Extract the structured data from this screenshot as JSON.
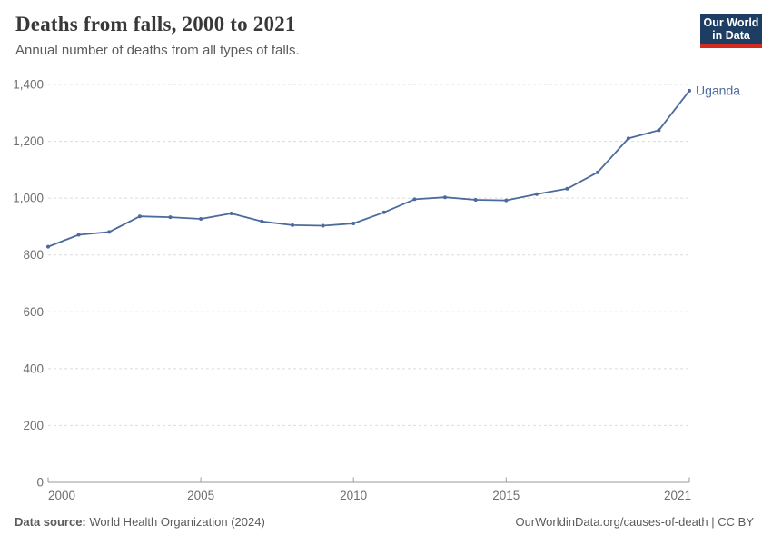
{
  "header": {
    "title": "Deaths from falls, 2000 to 2021",
    "subtitle": "Annual number of deaths from all types of falls.",
    "logo": {
      "line1": "Our World",
      "line2": "in Data",
      "bg_color": "#1d3d63",
      "accent_color": "#d42b21"
    }
  },
  "chart_data": {
    "type": "line",
    "title": "Deaths from falls, 2000 to 2021",
    "subtitle": "Annual number of deaths from all types of falls.",
    "x": [
      2000,
      2001,
      2002,
      2003,
      2004,
      2005,
      2006,
      2007,
      2008,
      2009,
      2010,
      2011,
      2012,
      2013,
      2014,
      2015,
      2016,
      2017,
      2018,
      2019,
      2020,
      2021
    ],
    "series": [
      {
        "name": "Uganda",
        "color": "#4c6a9c",
        "values": [
          829,
          871,
          881,
          936,
          933,
          927,
          946,
          918,
          905,
          903,
          911,
          950,
          996,
          1003,
          994,
          992,
          1014,
          1033,
          1091,
          1210,
          1239,
          1378
        ]
      }
    ],
    "xlim": [
      2000,
      2021
    ],
    "ylim": [
      0,
      1400
    ],
    "x_ticks": [
      2000,
      2005,
      2010,
      2015,
      2021
    ],
    "x_tick_labels": [
      "2000",
      "2005",
      "2010",
      "2015",
      "2021"
    ],
    "y_ticks": [
      0,
      200,
      400,
      600,
      800,
      1000,
      1200,
      1400
    ],
    "y_tick_labels": [
      "0",
      "200",
      "400",
      "600",
      "800",
      "1,000",
      "1,200",
      "1,400"
    ],
    "grid": "horizontal-dashed",
    "legend_position": "line-end-label",
    "grid_color": "#dcdcdc",
    "axis_color": "#9a9a9a",
    "tick_label_color": "#6e6e6e"
  },
  "footer": {
    "source_label": "Data source:",
    "source_text": " World Health Organization (2024)",
    "credit": "OurWorldinData.org/causes-of-death | CC BY"
  }
}
